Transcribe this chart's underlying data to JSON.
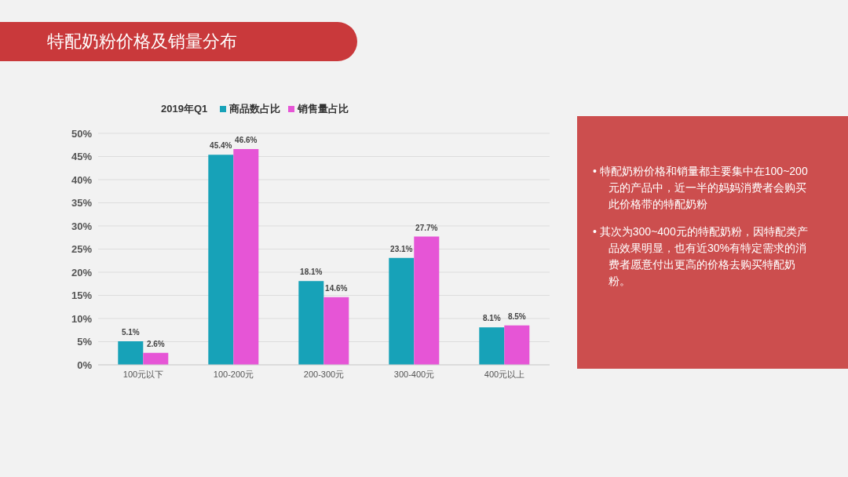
{
  "chart_data": {
    "type": "bar",
    "title": "特配奶粉价格及销量分布",
    "subtitle": "2019年Q1",
    "categories": [
      "100元以下",
      "100-200元",
      "200-300元",
      "300-400元",
      "400元以上"
    ],
    "series": [
      {
        "name": "商品数占比",
        "color": "#17a2b8",
        "values": [
          5.1,
          45.4,
          18.1,
          23.1,
          8.1
        ],
        "value_labels": [
          "5.1%",
          "45.4%",
          "18.1%",
          "23.1%",
          "8.1%"
        ]
      },
      {
        "name": "销售量占比",
        "color": "#e655d6",
        "values": [
          2.6,
          46.6,
          14.6,
          27.7,
          8.5
        ],
        "value_labels": [
          "2.6%",
          "46.6%",
          "14.6%",
          "27.7%",
          "8.5%"
        ]
      }
    ],
    "ylim": [
      0,
      50
    ],
    "yticks": [
      {
        "value": 0,
        "label": "0%"
      },
      {
        "value": 5,
        "label": "5%"
      },
      {
        "value": 10,
        "label": "10%"
      },
      {
        "value": 15,
        "label": "15%"
      },
      {
        "value": 20,
        "label": "20%"
      },
      {
        "value": 25,
        "label": "25%"
      },
      {
        "value": 30,
        "label": "30%"
      },
      {
        "value": 35,
        "label": "35%"
      },
      {
        "value": 40,
        "label": "40%"
      },
      {
        "value": 45,
        "label": "45%"
      },
      {
        "value": 50,
        "label": "50%"
      }
    ],
    "grid": "y",
    "legend": "top",
    "annotations": [
      "• 特配奶粉价格和销量都主要集中在100~200元的产品中，近一半的妈妈消费者会购买此价格带的特配奶粉",
      "• 其次为300~400元的特配奶粉，因特配类产品效果明显，也有近30%有特定需求的消费者愿意付出更高的价格去购买特配奶粉。"
    ]
  }
}
